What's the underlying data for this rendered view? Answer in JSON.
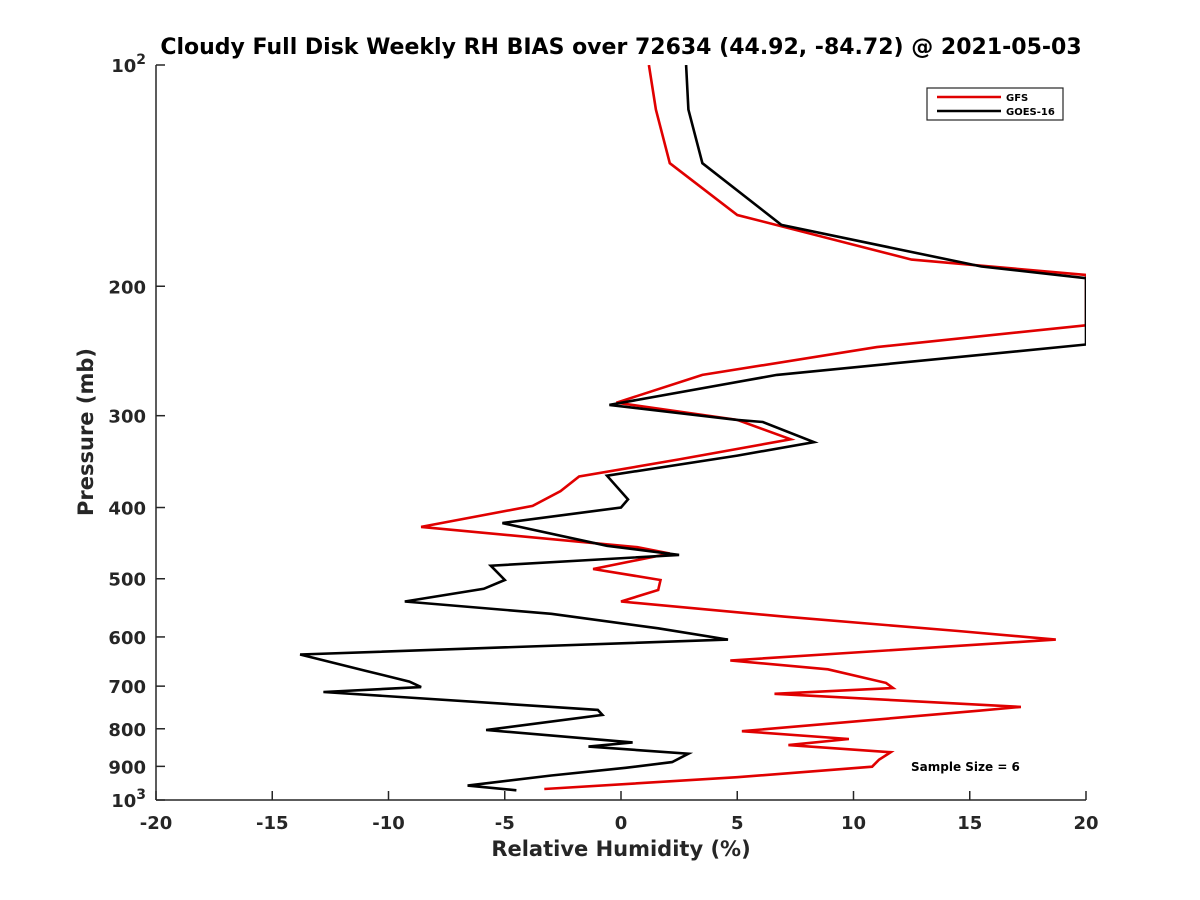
{
  "chart_data": {
    "type": "line",
    "title": "Cloudy Full Disk Weekly RH BIAS over 72634 (44.92, -84.72) @ 2021-05-03",
    "xlabel": "Relative Humidity (%)",
    "ylabel": "Pressure (mb)",
    "xlim": [
      -20,
      20
    ],
    "ylim": [
      100,
      1000
    ],
    "y_scale": "log",
    "y_reversed": true,
    "x_ticks": [
      "-20",
      "-15",
      "-10",
      "-5",
      "0",
      "5",
      "10",
      "15",
      "20"
    ],
    "y_ticks": [
      {
        "value": 100,
        "base": "10",
        "exp": "2"
      },
      {
        "value": 200,
        "label": "200"
      },
      {
        "value": 300,
        "label": "300"
      },
      {
        "value": 400,
        "label": "400"
      },
      {
        "value": 500,
        "label": "500"
      },
      {
        "value": 600,
        "label": "600"
      },
      {
        "value": 700,
        "label": "700"
      },
      {
        "value": 800,
        "label": "800"
      },
      {
        "value": 900,
        "label": "900"
      },
      {
        "value": 1000,
        "base": "10",
        "exp": "3"
      }
    ],
    "grid": false,
    "legend_position": "top-right",
    "annotation": "Sample Size = 6",
    "series": [
      {
        "name": "GFS",
        "color": "#e00000",
        "points": [
          [
            1.2,
            100
          ],
          [
            1.5,
            115
          ],
          [
            2.1,
            136
          ],
          [
            5.0,
            160
          ],
          [
            12.5,
            184
          ],
          [
            20.0,
            193
          ],
          [
            20.0,
            225
          ],
          [
            20.0,
            226
          ],
          [
            11.0,
            242
          ],
          [
            3.5,
            264
          ],
          [
            -0.2,
            288
          ],
          [
            5.0,
            304
          ],
          [
            7.3,
            323
          ],
          [
            2.5,
            344
          ],
          [
            -1.8,
            363
          ],
          [
            -2.6,
            380
          ],
          [
            -3.8,
            398
          ],
          [
            -8.6,
            425
          ],
          [
            0.7,
            453
          ],
          [
            2.1,
            462
          ],
          [
            -1.2,
            485
          ],
          [
            1.7,
            502
          ],
          [
            1.6,
            518
          ],
          [
            0.0,
            537
          ],
          [
            7.0,
            563
          ],
          [
            14.5,
            589
          ],
          [
            18.7,
            605
          ],
          [
            4.7,
            646
          ],
          [
            8.9,
            664
          ],
          [
            11.4,
            693
          ],
          [
            11.7,
            704
          ],
          [
            6.6,
            717
          ],
          [
            17.2,
            747
          ],
          [
            15.4,
            756
          ],
          [
            5.2,
            806
          ],
          [
            9.8,
            826
          ],
          [
            7.2,
            842
          ],
          [
            11.6,
            861
          ],
          [
            11.1,
            881
          ],
          [
            10.8,
            901
          ],
          [
            5.0,
            931
          ],
          [
            -3.3,
            966
          ]
        ]
      },
      {
        "name": "GOES-16",
        "color": "#000000",
        "points": [
          [
            2.8,
            100
          ],
          [
            2.9,
            115
          ],
          [
            3.5,
            136
          ],
          [
            6.9,
            165
          ],
          [
            15.5,
            188
          ],
          [
            20.0,
            195
          ],
          [
            20.0,
            240
          ],
          [
            6.7,
            264
          ],
          [
            -0.5,
            290
          ],
          [
            5.0,
            304
          ],
          [
            6.1,
            306
          ],
          [
            8.3,
            326
          ],
          [
            5.0,
            340
          ],
          [
            -0.6,
            362
          ],
          [
            0.3,
            390
          ],
          [
            0.0,
            400
          ],
          [
            -5.1,
            420
          ],
          [
            -0.6,
            451
          ],
          [
            2.5,
            464
          ],
          [
            -5.6,
            480
          ],
          [
            -5.0,
            502
          ],
          [
            -5.9,
            516
          ],
          [
            -9.3,
            537
          ],
          [
            -3.0,
            558
          ],
          [
            1.6,
            584
          ],
          [
            4.6,
            605
          ],
          [
            -13.8,
            634
          ],
          [
            -11.0,
            667
          ],
          [
            -9.1,
            690
          ],
          [
            -8.6,
            702
          ],
          [
            -12.8,
            713
          ],
          [
            -1.0,
            754
          ],
          [
            -0.8,
            766
          ],
          [
            -5.8,
            803
          ],
          [
            0.5,
            835
          ],
          [
            -1.4,
            846
          ],
          [
            2.9,
            865
          ],
          [
            2.2,
            888
          ],
          [
            0.2,
            904
          ],
          [
            -3.0,
            926
          ],
          [
            -6.6,
            956
          ],
          [
            -4.5,
            970
          ]
        ]
      }
    ]
  }
}
